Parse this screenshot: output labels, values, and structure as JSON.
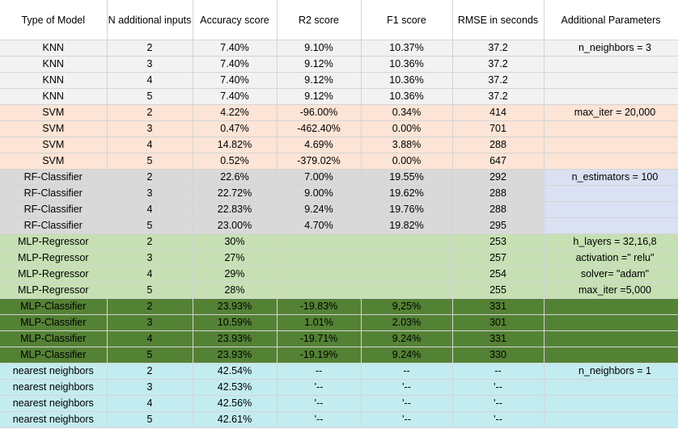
{
  "columns": [
    "Type of Model",
    "N additional inputs",
    "Accuracy score",
    "R2 score",
    "F1 score",
    "RMSE in seconds",
    "Additional Parameters"
  ],
  "colors": {
    "knn": "#f2f2f2",
    "svm": "#fce4d6",
    "rf": "#d9d9d9",
    "rf_param": "#d9e1f2",
    "mlp_reg": "#c6e0b4",
    "mlp_cls": "#548235",
    "nn": "#c3ecf0"
  },
  "groups": [
    {
      "key": "knn",
      "rows": [
        [
          "KNN",
          "2",
          "7.40%",
          "9.10%",
          "10.37%",
          "37.2",
          "n_neighbors = 3"
        ],
        [
          "KNN",
          "3",
          "7.40%",
          "9.12%",
          "10.36%",
          "37.2",
          ""
        ],
        [
          "KNN",
          "4",
          "7.40%",
          "9.12%",
          "10.36%",
          "37.2",
          ""
        ],
        [
          "KNN",
          "5",
          "7.40%",
          "9.12%",
          "10.36%",
          "37.2",
          ""
        ]
      ]
    },
    {
      "key": "svm",
      "rows": [
        [
          "SVM",
          "2",
          "4.22%",
          "-96.00%",
          "0.34%",
          "414",
          "max_iter = 20,000"
        ],
        [
          "SVM",
          "3",
          "0.47%",
          "-462.40%",
          "0.00%",
          "701",
          ""
        ],
        [
          "SVM",
          "4",
          "14.82%",
          "4.69%",
          "3.88%",
          "288",
          ""
        ],
        [
          "SVM",
          "5",
          "0.52%",
          "-379.02%",
          "0.00%",
          "647",
          ""
        ]
      ]
    },
    {
      "key": "rf",
      "rows": [
        [
          "RF-Classifier",
          "2",
          "22.6%",
          "7.00%",
          "19.55%",
          "292",
          "n_estimators = 100"
        ],
        [
          "RF-Classifier",
          "3",
          "22.72%",
          "9.00%",
          "19.62%",
          "288",
          ""
        ],
        [
          "RF-Classifier",
          "4",
          "22.83%",
          "9.24%",
          "19.76%",
          "288",
          ""
        ],
        [
          "RF-Classifier",
          "5",
          "23.00%",
          "4.70%",
          "19.82%",
          "295",
          ""
        ]
      ]
    },
    {
      "key": "mlp_reg",
      "rows": [
        [
          "MLP-Regressor",
          "2",
          "30%",
          "",
          "",
          "253",
          "h_layers = 32,16,8"
        ],
        [
          "MLP-Regressor",
          "3",
          "27%",
          "",
          "",
          "257",
          "activation =\" relu\""
        ],
        [
          "MLP-Regressor",
          "4",
          "29%",
          "",
          "",
          "254",
          "solver= \"adam\""
        ],
        [
          "MLP-Regressor",
          "5",
          "28%",
          "",
          "",
          "255",
          "max_iter =5,000"
        ]
      ]
    },
    {
      "key": "mlp_cls",
      "rows": [
        [
          "MLP-Classifier",
          "2",
          "23.93%",
          "-19.83%",
          "9,25%",
          "331",
          ""
        ],
        [
          "MLP-Classifier",
          "3",
          "10.59%",
          "1.01%",
          "2.03%",
          "301",
          ""
        ],
        [
          "MLP-Classifier",
          "4",
          "23.93%",
          "-19.71%",
          "9.24%",
          "331",
          ""
        ],
        [
          "MLP-Classifier",
          "5",
          "23.93%",
          "-19.19%",
          "9.24%",
          "330",
          ""
        ]
      ]
    },
    {
      "key": "nn",
      "rows": [
        [
          "nearest neighbors",
          "2",
          "42.54%",
          "--",
          "--",
          "--",
          "n_neighbors = 1"
        ],
        [
          "nearest neighbors",
          "3",
          "42.53%",
          "'--",
          "'--",
          "'--",
          ""
        ],
        [
          "nearest neighbors",
          "4",
          "42.56%",
          "'--",
          "'--",
          "'--",
          ""
        ],
        [
          "nearest neighbors",
          "5",
          "42.61%",
          "'--",
          "'--",
          "'--",
          ""
        ]
      ]
    }
  ]
}
